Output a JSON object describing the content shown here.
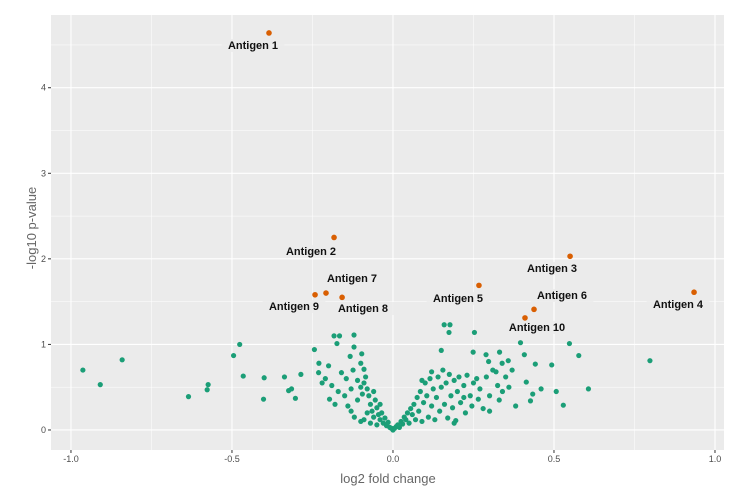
{
  "chart_data": {
    "type": "scatter",
    "title": "",
    "xlabel": "log2 fold change",
    "ylabel": "-log10 p-value",
    "xlim": [
      -1.062,
      1.028
    ],
    "ylim": [
      -0.234,
      4.85
    ],
    "x_ticks": [
      -1.0,
      -0.5,
      0.0,
      0.5,
      1.0
    ],
    "x_tick_labels": [
      "-1.0",
      "-0.5",
      "0.0",
      "0.5",
      "1.0"
    ],
    "y_ticks": [
      0,
      1,
      2,
      3,
      4
    ],
    "y_tick_labels": [
      "0",
      "1",
      "2",
      "3",
      "4"
    ],
    "grid": true,
    "background": "#EBEBEB",
    "colors": {
      "significant": "#D95F02",
      "not_significant": "#1B9E77"
    },
    "highlighted": [
      {
        "label": "Antigen 1",
        "x": -0.385,
        "y": 4.64
      },
      {
        "label": "Antigen 2",
        "x": -0.183,
        "y": 2.25
      },
      {
        "label": "Antigen 3",
        "x": 0.55,
        "y": 2.03
      },
      {
        "label": "Antigen 4",
        "x": 0.935,
        "y": 1.61
      },
      {
        "label": "Antigen 5",
        "x": 0.267,
        "y": 1.69
      },
      {
        "label": "Antigen 6",
        "x": 0.438,
        "y": 1.41
      },
      {
        "label": "Antigen 7",
        "x": -0.208,
        "y": 1.6
      },
      {
        "label": "Antigen 8",
        "x": -0.158,
        "y": 1.55
      },
      {
        "label": "Antigen 9",
        "x": -0.242,
        "y": 1.58
      },
      {
        "label": "Antigen 10",
        "x": 0.41,
        "y": 1.31
      }
    ],
    "points": [
      [
        -0.963,
        0.7
      ],
      [
        -0.909,
        0.53
      ],
      [
        -0.841,
        0.82
      ],
      [
        -0.635,
        0.39
      ],
      [
        -0.577,
        0.47
      ],
      [
        -0.574,
        0.53
      ],
      [
        -0.495,
        0.87
      ],
      [
        -0.476,
        1.0
      ],
      [
        -0.465,
        0.63
      ],
      [
        -0.4,
        0.61
      ],
      [
        -0.402,
        0.36
      ],
      [
        -0.337,
        0.62
      ],
      [
        -0.324,
        0.46
      ],
      [
        -0.315,
        0.48
      ],
      [
        -0.303,
        0.37
      ],
      [
        -0.286,
        0.65
      ],
      [
        -0.244,
        0.94
      ],
      [
        -0.23,
        0.78
      ],
      [
        -0.231,
        0.67
      ],
      [
        -0.2,
        0.75
      ],
      [
        -0.197,
        0.36
      ],
      [
        -0.183,
        1.1
      ],
      [
        -0.166,
        1.1
      ],
      [
        -0.121,
        1.11
      ],
      [
        -0.174,
        1.01
      ],
      [
        -0.121,
        0.97
      ],
      [
        -0.097,
        0.89
      ],
      [
        -0.133,
        0.86
      ],
      [
        -0.1,
        0.78
      ],
      [
        -0.09,
        0.71
      ],
      [
        -0.124,
        0.7
      ],
      [
        -0.16,
        0.67
      ],
      [
        -0.21,
        0.6
      ],
      [
        -0.22,
        0.55
      ],
      [
        -0.19,
        0.52
      ],
      [
        -0.17,
        0.45
      ],
      [
        -0.15,
        0.4
      ],
      [
        -0.18,
        0.3
      ],
      [
        -0.14,
        0.28
      ],
      [
        -0.13,
        0.22
      ],
      [
        -0.12,
        0.15
      ],
      [
        -0.11,
        0.35
      ],
      [
        -0.1,
        0.5
      ],
      [
        -0.09,
        0.55
      ],
      [
        -0.08,
        0.48
      ],
      [
        -0.075,
        0.4
      ],
      [
        -0.07,
        0.3
      ],
      [
        -0.065,
        0.22
      ],
      [
        -0.06,
        0.15
      ],
      [
        -0.055,
        0.35
      ],
      [
        -0.05,
        0.26
      ],
      [
        -0.045,
        0.18
      ],
      [
        -0.04,
        0.12
      ],
      [
        -0.035,
        0.2
      ],
      [
        -0.03,
        0.08
      ],
      [
        -0.025,
        0.14
      ],
      [
        -0.02,
        0.05
      ],
      [
        -0.015,
        0.09
      ],
      [
        -0.01,
        0.03
      ],
      [
        -0.005,
        0.02
      ],
      [
        -0.085,
        0.62
      ],
      [
        -0.11,
        0.58
      ],
      [
        -0.13,
        0.48
      ],
      [
        -0.145,
        0.6
      ],
      [
        -0.095,
        0.42
      ],
      [
        -0.08,
        0.2
      ],
      [
        -0.06,
        0.45
      ],
      [
        -0.04,
        0.3
      ],
      [
        -0.1,
        0.1
      ],
      [
        -0.09,
        0.12
      ],
      [
        -0.07,
        0.08
      ],
      [
        -0.05,
        0.06
      ],
      [
        0.0,
        0.0
      ],
      [
        0.005,
        0.02
      ],
      [
        0.01,
        0.04
      ],
      [
        0.015,
        0.06
      ],
      [
        0.02,
        0.03
      ],
      [
        0.025,
        0.1
      ],
      [
        0.03,
        0.07
      ],
      [
        0.035,
        0.15
      ],
      [
        0.04,
        0.12
      ],
      [
        0.045,
        0.2
      ],
      [
        0.05,
        0.08
      ],
      [
        0.055,
        0.25
      ],
      [
        0.06,
        0.18
      ],
      [
        0.065,
        0.3
      ],
      [
        0.07,
        0.12
      ],
      [
        0.075,
        0.38
      ],
      [
        0.08,
        0.22
      ],
      [
        0.085,
        0.45
      ],
      [
        0.09,
        0.1
      ],
      [
        0.095,
        0.32
      ],
      [
        0.1,
        0.55
      ],
      [
        0.105,
        0.4
      ],
      [
        0.11,
        0.15
      ],
      [
        0.115,
        0.6
      ],
      [
        0.12,
        0.28
      ],
      [
        0.125,
        0.48
      ],
      [
        0.13,
        0.12
      ],
      [
        0.135,
        0.38
      ],
      [
        0.14,
        0.62
      ],
      [
        0.145,
        0.22
      ],
      [
        0.15,
        0.5
      ],
      [
        0.155,
        0.7
      ],
      [
        0.16,
        0.3
      ],
      [
        0.165,
        0.55
      ],
      [
        0.17,
        0.14
      ],
      [
        0.175,
        0.65
      ],
      [
        0.18,
        0.4
      ],
      [
        0.185,
        0.26
      ],
      [
        0.19,
        0.58
      ],
      [
        0.195,
        0.11
      ],
      [
        0.2,
        0.45
      ],
      [
        0.205,
        0.62
      ],
      [
        0.21,
        0.32
      ],
      [
        0.22,
        0.52
      ],
      [
        0.225,
        0.2
      ],
      [
        0.23,
        0.64
      ],
      [
        0.24,
        0.4
      ],
      [
        0.245,
        0.28
      ],
      [
        0.25,
        0.55
      ],
      [
        0.26,
        0.6
      ],
      [
        0.265,
        0.36
      ],
      [
        0.27,
        0.48
      ],
      [
        0.28,
        0.25
      ],
      [
        0.29,
        0.62
      ],
      [
        0.3,
        0.4
      ],
      [
        0.31,
        0.7
      ],
      [
        0.32,
        0.68
      ],
      [
        0.325,
        0.52
      ],
      [
        0.33,
        0.35
      ],
      [
        0.34,
        0.45
      ],
      [
        0.159,
        1.23
      ],
      [
        0.177,
        1.23
      ],
      [
        0.174,
        1.14
      ],
      [
        0.253,
        1.14
      ],
      [
        0.15,
        0.93
      ],
      [
        0.249,
        0.91
      ],
      [
        0.289,
        0.88
      ],
      [
        0.297,
        0.8
      ],
      [
        0.331,
        0.91
      ],
      [
        0.339,
        0.78
      ],
      [
        0.358,
        0.81
      ],
      [
        0.396,
        1.02
      ],
      [
        0.408,
        0.88
      ],
      [
        0.442,
        0.77
      ],
      [
        0.493,
        0.76
      ],
      [
        0.548,
        1.01
      ],
      [
        0.577,
        0.87
      ],
      [
        0.414,
        0.56
      ],
      [
        0.46,
        0.48
      ],
      [
        0.434,
        0.42
      ],
      [
        0.507,
        0.45
      ],
      [
        0.427,
        0.34
      ],
      [
        0.381,
        0.28
      ],
      [
        0.529,
        0.29
      ],
      [
        0.607,
        0.48
      ],
      [
        0.798,
        0.81
      ],
      [
        0.35,
        0.62
      ],
      [
        0.36,
        0.5
      ],
      [
        0.37,
        0.7
      ],
      [
        0.3,
        0.22
      ],
      [
        0.19,
        0.08
      ],
      [
        0.22,
        0.38
      ],
      [
        0.12,
        0.68
      ],
      [
        0.09,
        0.58
      ]
    ]
  }
}
